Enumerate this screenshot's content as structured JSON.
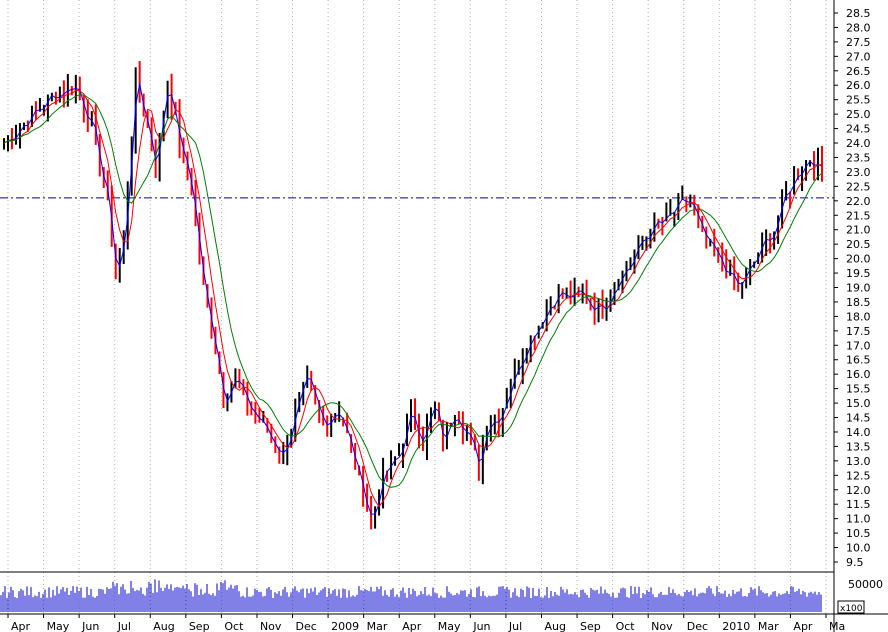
{
  "chart_data": {
    "type": "line",
    "subtype": "ohlc-with-moving-averages-and-volume",
    "x_ticks": [
      "Apr",
      "May",
      "Jun",
      "Jul",
      "Aug",
      "Sep",
      "Oct",
      "Nov",
      "Dec",
      "2009",
      "Mar",
      "Apr",
      "May",
      "Jun",
      "Jul",
      "Aug",
      "Sep",
      "Oct",
      "Nov",
      "Dec",
      "2010",
      "Mar",
      "Apr",
      "Ma"
    ],
    "y_ticks": [
      "28.5",
      "28.0",
      "27.5",
      "27.0",
      "26.5",
      "26.0",
      "25.5",
      "25.0",
      "24.5",
      "24.0",
      "23.5",
      "23.0",
      "22.5",
      "22.0",
      "21.5",
      "21.0",
      "20.5",
      "20.0",
      "19.5",
      "19.0",
      "18.5",
      "18.0",
      "17.5",
      "17.0",
      "16.5",
      "16.0",
      "15.5",
      "15.0",
      "14.5",
      "14.0",
      "13.5",
      "13.0",
      "12.5",
      "12.0",
      "11.5",
      "11.0",
      "10.5",
      "10.0",
      "9.5"
    ],
    "ylim": [
      9.0,
      29.0
    ],
    "reference_line": 22.1,
    "volume_tick": "50000",
    "volume_unit": "x100",
    "price_anchors": [
      [
        0,
        24.0
      ],
      [
        6,
        24.8
      ],
      [
        12,
        25.6
      ],
      [
        18,
        26.0
      ],
      [
        22,
        24.6
      ],
      [
        26,
        22.0
      ],
      [
        28,
        19.5
      ],
      [
        30,
        20.5
      ],
      [
        33,
        26.2
      ],
      [
        36,
        24.6
      ],
      [
        38,
        23.2
      ],
      [
        41,
        26.2
      ],
      [
        44,
        24.0
      ],
      [
        47,
        22.5
      ],
      [
        50,
        19.0
      ],
      [
        53,
        17.0
      ],
      [
        55,
        15.2
      ],
      [
        58,
        15.8
      ],
      [
        62,
        14.8
      ],
      [
        66,
        14.0
      ],
      [
        70,
        13.2
      ],
      [
        73,
        14.6
      ],
      [
        76,
        15.8
      ],
      [
        80,
        14.3
      ],
      [
        84,
        14.8
      ],
      [
        87,
        13.4
      ],
      [
        90,
        12.0
      ],
      [
        92,
        10.9
      ],
      [
        95,
        12.4
      ],
      [
        99,
        13.2
      ],
      [
        102,
        14.6
      ],
      [
        105,
        13.8
      ],
      [
        108,
        14.9
      ],
      [
        110,
        13.6
      ],
      [
        113,
        14.8
      ],
      [
        116,
        14.0
      ],
      [
        119,
        12.8
      ],
      [
        121,
        14.3
      ],
      [
        124,
        14.5
      ],
      [
        127,
        15.6
      ],
      [
        130,
        16.7
      ],
      [
        133,
        17.5
      ],
      [
        136,
        18.2
      ],
      [
        139,
        18.8
      ],
      [
        142,
        18.6
      ],
      [
        145,
        18.8
      ],
      [
        148,
        18.3
      ],
      [
        151,
        18.5
      ],
      [
        154,
        19.3
      ],
      [
        157,
        19.8
      ],
      [
        160,
        20.6
      ],
      [
        163,
        21.1
      ],
      [
        166,
        21.3
      ],
      [
        169,
        21.8
      ],
      [
        172,
        22.0
      ],
      [
        175,
        20.8
      ],
      [
        178,
        20.2
      ],
      [
        181,
        19.6
      ],
      [
        184,
        19.0
      ],
      [
        187,
        19.6
      ],
      [
        190,
        20.4
      ],
      [
        193,
        21.0
      ],
      [
        196,
        22.2
      ],
      [
        199,
        23.0
      ],
      [
        202,
        23.5
      ],
      [
        205,
        23.0
      ]
    ],
    "ma_periods": [
      10,
      25,
      50
    ],
    "series": [
      {
        "color": "#0000ff"
      },
      {
        "color": "#ff0000"
      },
      {
        "color": "#008000"
      }
    ],
    "bar_colors": {
      "up": "#000000",
      "down": "#ff0000"
    },
    "volume_color": "#0000cc",
    "grid": "vertical-dotted"
  }
}
